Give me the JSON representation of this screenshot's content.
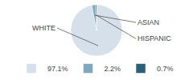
{
  "chart_data": {
    "type": "pie",
    "categories": [
      "WHITE",
      "ASIAN",
      "HISPANIC"
    ],
    "values": [
      97.1,
      2.2,
      0.7
    ],
    "value_labels": [
      "97.1%",
      "2.2%",
      "0.7%"
    ],
    "colors": [
      "#d6e0ea",
      "#7fa8bc",
      "#2e5f78"
    ],
    "legend": "bottom"
  }
}
